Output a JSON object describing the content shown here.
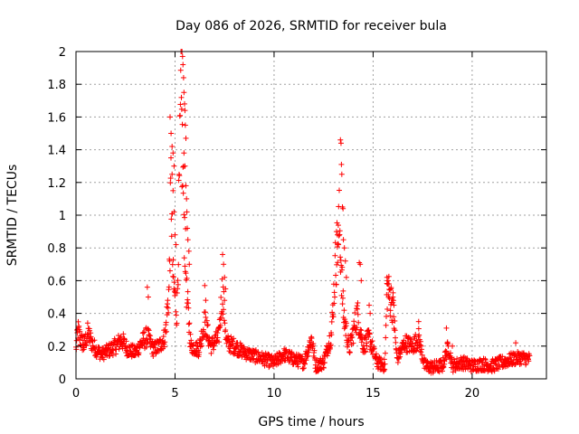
{
  "chart_data": {
    "type": "scatter",
    "title": "Day 086 of 2026, SRMTID for receiver bula",
    "xlabel": "GPS time / hours",
    "ylabel": "SRMTID / TECUs",
    "xlim": [
      0,
      23.75
    ],
    "ylim": [
      0,
      2
    ],
    "xticks": [
      0,
      5,
      10,
      15,
      20
    ],
    "xtick_labels": [
      "0",
      "5",
      "10",
      "15",
      "20"
    ],
    "yticks": [
      0,
      0.2,
      0.4,
      0.6,
      0.8,
      1,
      1.2,
      1.4,
      1.6,
      1.8,
      2
    ],
    "ytick_labels": [
      "0",
      "0.2",
      "0.4",
      "0.6",
      "0.8",
      "1",
      "1.2",
      "1.4",
      "1.6",
      "1.8",
      "2"
    ],
    "grid": true,
    "marker": "+",
    "series": [
      {
        "name": "SRMTID",
        "color": "#ff0000",
        "profile": [
          [
            0.0,
            0.18
          ],
          [
            0.1,
            0.3
          ],
          [
            0.2,
            0.25
          ],
          [
            0.4,
            0.2
          ],
          [
            0.6,
            0.28
          ],
          [
            0.8,
            0.22
          ],
          [
            1.0,
            0.18
          ],
          [
            1.3,
            0.15
          ],
          [
            1.6,
            0.17
          ],
          [
            2.0,
            0.2
          ],
          [
            2.3,
            0.24
          ],
          [
            2.6,
            0.18
          ],
          [
            3.0,
            0.16
          ],
          [
            3.3,
            0.22
          ],
          [
            3.6,
            0.26
          ],
          [
            3.9,
            0.18
          ],
          [
            4.2,
            0.2
          ],
          [
            4.5,
            0.26
          ],
          [
            4.7,
            0.55
          ],
          [
            4.8,
            1.2
          ],
          [
            4.9,
            0.6
          ],
          [
            5.1,
            0.4
          ],
          [
            5.3,
            1.7
          ],
          [
            5.4,
            1.2
          ],
          [
            5.6,
            0.5
          ],
          [
            5.8,
            0.2
          ],
          [
            6.2,
            0.18
          ],
          [
            6.5,
            0.35
          ],
          [
            6.8,
            0.2
          ],
          [
            7.2,
            0.25
          ],
          [
            7.4,
            0.55
          ],
          [
            7.6,
            0.22
          ],
          [
            8.0,
            0.2
          ],
          [
            8.5,
            0.16
          ],
          [
            9.0,
            0.14
          ],
          [
            9.5,
            0.12
          ],
          [
            10.0,
            0.1
          ],
          [
            10.5,
            0.15
          ],
          [
            11.0,
            0.12
          ],
          [
            11.5,
            0.1
          ],
          [
            11.9,
            0.25
          ],
          [
            12.1,
            0.08
          ],
          [
            12.5,
            0.1
          ],
          [
            12.9,
            0.28
          ],
          [
            13.1,
            0.7
          ],
          [
            13.3,
            0.95
          ],
          [
            13.5,
            0.4
          ],
          [
            13.8,
            0.18
          ],
          [
            14.2,
            0.4
          ],
          [
            14.5,
            0.2
          ],
          [
            14.8,
            0.25
          ],
          [
            15.2,
            0.1
          ],
          [
            15.6,
            0.08
          ],
          [
            15.7,
            0.55
          ],
          [
            16.0,
            0.45
          ],
          [
            16.2,
            0.12
          ],
          [
            16.6,
            0.22
          ],
          [
            17.0,
            0.2
          ],
          [
            17.3,
            0.25
          ],
          [
            17.6,
            0.08
          ],
          [
            18.0,
            0.07
          ],
          [
            18.5,
            0.08
          ],
          [
            18.8,
            0.2
          ],
          [
            19.0,
            0.08
          ],
          [
            19.5,
            0.1
          ],
          [
            20.0,
            0.08
          ],
          [
            20.5,
            0.09
          ],
          [
            21.0,
            0.08
          ],
          [
            21.5,
            0.1
          ],
          [
            22.0,
            0.12
          ],
          [
            22.5,
            0.13
          ],
          [
            22.9,
            0.12
          ]
        ],
        "peaks": [
          [
            4.75,
            1.6
          ],
          [
            4.8,
            1.5
          ],
          [
            4.85,
            1.42
          ],
          [
            4.9,
            1.38
          ],
          [
            4.95,
            1.3
          ],
          [
            4.85,
            1.25
          ],
          [
            4.9,
            1.15
          ],
          [
            4.95,
            1.02
          ],
          [
            5.0,
            0.88
          ],
          [
            5.05,
            0.82
          ],
          [
            5.35,
            2.0
          ],
          [
            5.38,
            1.97
          ],
          [
            5.4,
            1.92
          ],
          [
            5.43,
            1.84
          ],
          [
            5.45,
            1.75
          ],
          [
            5.48,
            1.68
          ],
          [
            5.5,
            1.64
          ],
          [
            5.52,
            1.55
          ],
          [
            5.55,
            1.47
          ],
          [
            5.45,
            1.38
          ],
          [
            5.5,
            1.3
          ],
          [
            5.55,
            1.18
          ],
          [
            5.58,
            1.1
          ],
          [
            5.6,
            1.02
          ],
          [
            5.62,
            0.92
          ],
          [
            5.65,
            0.85
          ],
          [
            5.7,
            0.78
          ],
          [
            5.72,
            0.7
          ],
          [
            3.6,
            0.56
          ],
          [
            3.65,
            0.5
          ],
          [
            6.5,
            0.57
          ],
          [
            6.55,
            0.48
          ],
          [
            7.4,
            0.76
          ],
          [
            7.45,
            0.7
          ],
          [
            7.5,
            0.62
          ],
          [
            7.55,
            0.55
          ],
          [
            13.15,
            0.9
          ],
          [
            13.2,
            0.88
          ],
          [
            13.25,
            0.82
          ],
          [
            13.35,
            1.46
          ],
          [
            13.38,
            1.44
          ],
          [
            13.4,
            1.31
          ],
          [
            13.42,
            1.25
          ],
          [
            13.45,
            1.05
          ],
          [
            13.48,
            1.04
          ],
          [
            13.5,
            0.85
          ],
          [
            13.55,
            0.8
          ],
          [
            13.6,
            0.72
          ],
          [
            13.65,
            0.62
          ],
          [
            14.3,
            0.71
          ],
          [
            14.35,
            0.7
          ],
          [
            14.4,
            0.6
          ],
          [
            14.8,
            0.45
          ],
          [
            14.85,
            0.4
          ],
          [
            15.7,
            0.62
          ],
          [
            15.75,
            0.6
          ],
          [
            15.8,
            0.58
          ],
          [
            15.9,
            0.55
          ],
          [
            16.0,
            0.5
          ],
          [
            16.05,
            0.45
          ],
          [
            17.3,
            0.35
          ],
          [
            18.7,
            0.31
          ],
          [
            19.0,
            0.2
          ],
          [
            22.2,
            0.22
          ]
        ],
        "n_points": 1400
      }
    ]
  }
}
